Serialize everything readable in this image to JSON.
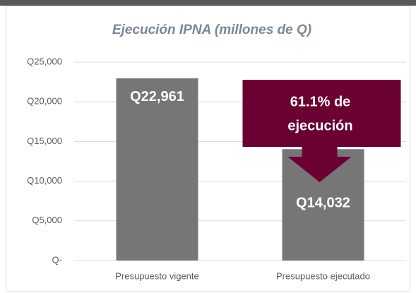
{
  "chart_data": {
    "type": "bar",
    "title": "Ejecución IPNA (millones de Q)",
    "categories": [
      "Presupuesto vigente",
      "Presupuesto ejecutado"
    ],
    "values": [
      22961,
      14032
    ],
    "value_labels": [
      "Q22,961",
      "Q14,032"
    ],
    "color": "#767676",
    "ylim": [
      0,
      25000
    ],
    "yticks": [
      {
        "value": 0,
        "label": "Q-"
      },
      {
        "value": 5000,
        "label": "Q5,000"
      },
      {
        "value": 10000,
        "label": "Q10,000"
      },
      {
        "value": 15000,
        "label": "Q15,000"
      },
      {
        "value": 20000,
        "label": "Q20,000"
      },
      {
        "value": 25000,
        "label": "Q25,000"
      }
    ],
    "grid": true,
    "annotation": [
      "61.1% de",
      "ejecución"
    ],
    "annotation_color": "#6b0032"
  }
}
